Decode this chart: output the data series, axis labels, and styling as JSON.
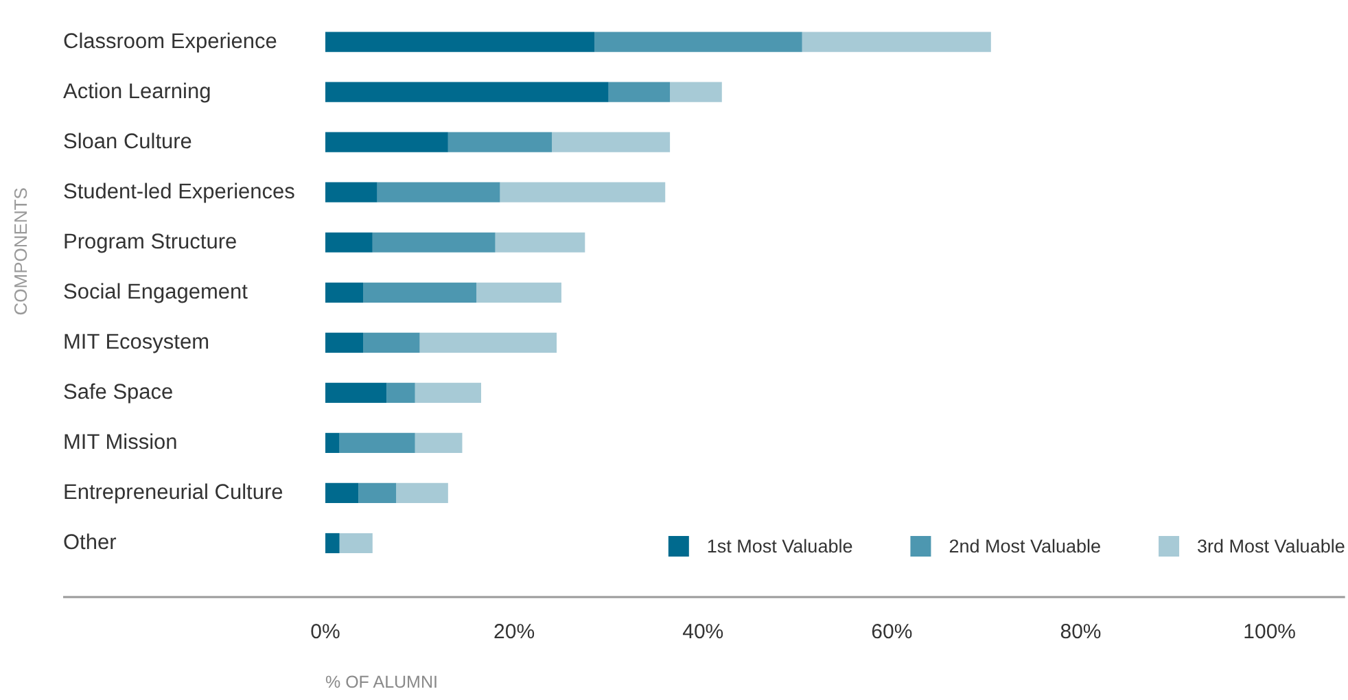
{
  "chart_data": {
    "type": "bar",
    "orientation": "horizontal",
    "stacked": true,
    "ylabel": "COMPONENTS",
    "xlabel": "% OF ALUMNI",
    "categories": [
      "Classroom Experience",
      "Action Learning",
      "Sloan Culture",
      "Student-led Experiences",
      "Program Structure",
      "Social Engagement",
      "MIT Ecosystem",
      "Safe Space",
      "MIT Mission",
      "Entrepreneurial Culture",
      "Other"
    ],
    "series": [
      {
        "name": "1st Most Valuable",
        "color": "#006a8e",
        "values": [
          28.5,
          30,
          13,
          5.5,
          5,
          4,
          4,
          6.5,
          1.5,
          3.5,
          1.5
        ]
      },
      {
        "name": "2nd Most Valuable",
        "color": "#4d97b0",
        "values": [
          22,
          6.5,
          11,
          13,
          13,
          12,
          6,
          3,
          8,
          4,
          0
        ]
      },
      {
        "name": "3rd Most Valuable",
        "color": "#a7cad6",
        "values": [
          20,
          5.5,
          12.5,
          17.5,
          9.5,
          9,
          14.5,
          7,
          5,
          5.5,
          3.5
        ]
      }
    ],
    "xlim": [
      0,
      108
    ],
    "xticks": [
      {
        "value": 0,
        "label": "0%"
      },
      {
        "value": 20,
        "label": "20%"
      },
      {
        "value": 40,
        "label": "40%"
      },
      {
        "value": 60,
        "label": "60%"
      },
      {
        "value": 80,
        "label": "80%"
      },
      {
        "value": 100,
        "label": "100%"
      }
    ],
    "grid": false,
    "legend": "bottom right"
  }
}
